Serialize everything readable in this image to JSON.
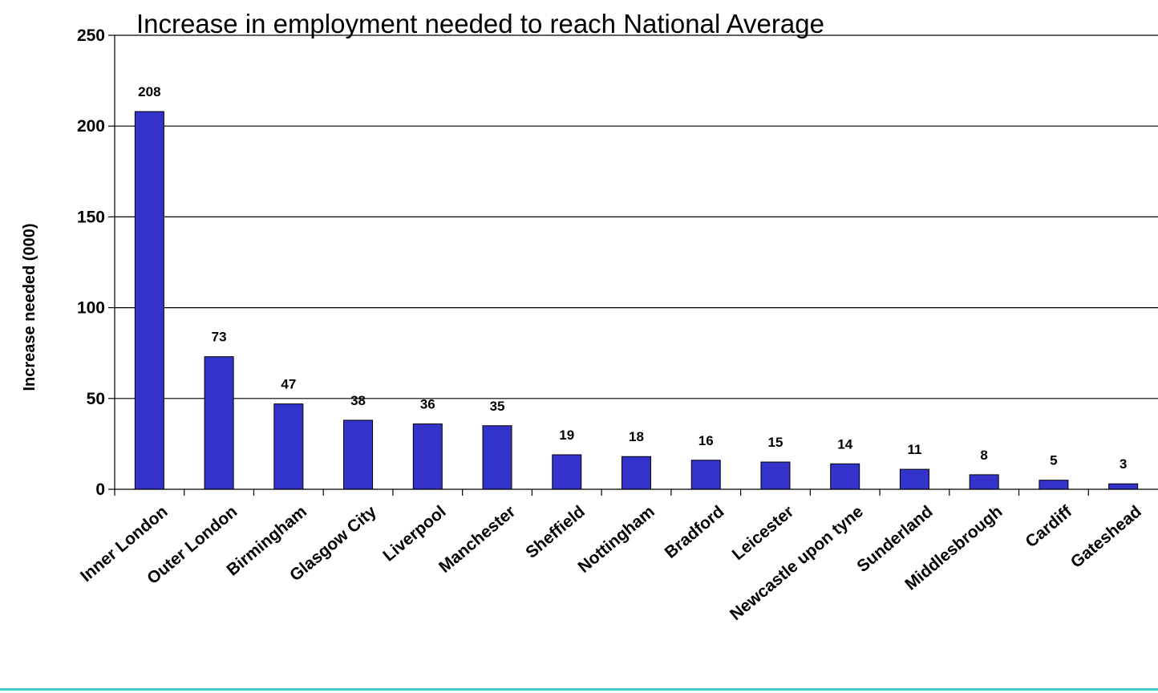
{
  "chart_data": {
    "type": "bar",
    "title": "Increase in employment needed to reach National Average",
    "xlabel": "",
    "ylabel": "Increase needed (000)",
    "ylim": [
      0,
      250
    ],
    "yticks": [
      0,
      50,
      100,
      150,
      200,
      250
    ],
    "grid": true,
    "legend": "none",
    "categories": [
      "Inner London",
      "Outer London",
      "Birmingham",
      "Glasgow City",
      "Liverpool",
      "Manchester",
      "Sheffield",
      "Nottingham",
      "Bradford",
      "Leicester",
      "Newcastle upon tyne",
      "Sunderland",
      "Middlesbrough",
      "Cardiff",
      "Gateshead"
    ],
    "values": [
      208,
      73,
      47,
      38,
      36,
      35,
      19,
      18,
      16,
      15,
      14,
      11,
      8,
      5,
      3
    ],
    "data_labels": [
      "208",
      "73",
      "47",
      "38",
      "36",
      "35",
      "19",
      "18",
      "16",
      "15",
      "14",
      "11",
      "8",
      "5",
      "3"
    ]
  },
  "colors": {
    "bar_fill": "#3333cc",
    "bar_stroke": "#000000",
    "bottom_rule": "#44cccc"
  }
}
